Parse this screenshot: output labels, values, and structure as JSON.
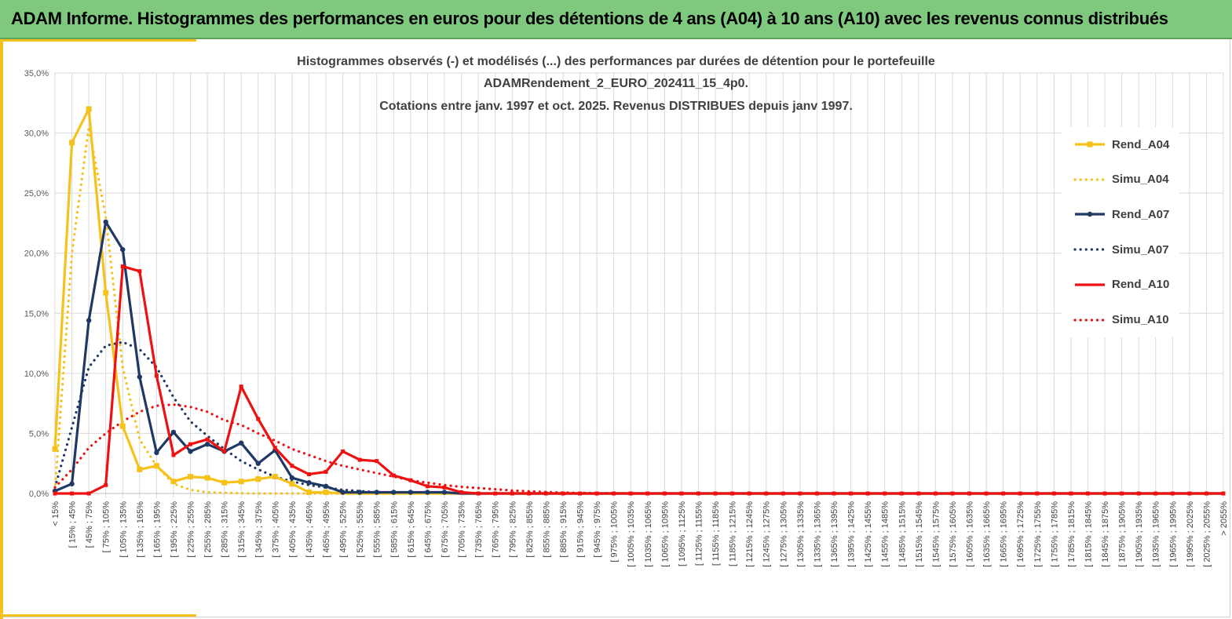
{
  "banner": {
    "title": "ADAM Informe. Histogrammes des performances en euros pour des détentions de 4 ans (A04) à 10 ans (A10) avec les revenus connus distribués"
  },
  "colors": {
    "banner": "#7fc97f",
    "accent": "#f5c21b",
    "A04": "#f5c21b",
    "A07": "#1f3864",
    "A10": "#ee1111",
    "grid": "#d9d9d9"
  },
  "chart_data": {
    "type": "line",
    "title_lines": [
      "Histogrammes observés (-) et modélisés (...) des performances par durées de détention pour le portefeuille",
      "ADAMRendement_2_EURO_202411_15_4p0.",
      "Cotations entre janv. 1997 et oct. 2025. Revenus DISTRIBUES depuis janv 1997."
    ],
    "xlabel": "",
    "ylabel": "",
    "ylim": [
      0,
      35
    ],
    "y_ticks": [
      "0,0%",
      "5,0%",
      "10,0%",
      "15,0%",
      "20,0%",
      "25,0%",
      "30,0%",
      "35,0%"
    ],
    "grid": true,
    "legend_position": "right",
    "categories": [
      "< 15%",
      "[ 15% ; 45%",
      "[ 45% ; 75%",
      "[ 75% ; 105%",
      "[ 105% ; 135%",
      "[ 135% ; 165%",
      "[ 165% ; 195%",
      "[ 195% ; 225%",
      "[ 225% ; 255%",
      "[ 255% ; 285%",
      "[ 285% ; 315%",
      "[ 315% ; 345%",
      "[ 345% ; 375%",
      "[ 375% ; 405%",
      "[ 405% ; 435%",
      "[ 435% ; 465%",
      "[ 465% ; 495%",
      "[ 495% ; 525%",
      "[ 525% ; 555%",
      "[ 555% ; 585%",
      "[ 585% ; 615%",
      "[ 615% ; 645%",
      "[ 645% ; 675%",
      "[ 675% ; 705%",
      "[ 705% ; 735%",
      "[ 735% ; 765%",
      "[ 765% ; 795%",
      "[ 795% ; 825%",
      "[ 825% ; 855%",
      "[ 855% ; 885%",
      "[ 885% ; 915%",
      "[ 915% ; 945%",
      "[ 945% ; 975%",
      "[ 975% ; 1005%",
      "[ 1005% ; 1035%",
      "[ 1035% ; 1065%",
      "[ 1065% ; 1095%",
      "[ 1095% ; 1125%",
      "[ 1125% ; 1155%",
      "[ 1155% ; 1185%",
      "[ 1185% ; 1215%",
      "[ 1215% ; 1245%",
      "[ 1245% ; 1275%",
      "[ 1275% ; 1305%",
      "[ 1305% ; 1335%",
      "[ 1335% ; 1365%",
      "[ 1365% ; 1395%",
      "[ 1395% ; 1425%",
      "[ 1425% ; 1455%",
      "[ 1455% ; 1485%",
      "[ 1485% ; 1515%",
      "[ 1515% ; 1545%",
      "[ 1545% ; 1575%",
      "[ 1575% ; 1605%",
      "[ 1605% ; 1635%",
      "[ 1635% ; 1665%",
      "[ 1665% ; 1695%",
      "[ 1695% ; 1725%",
      "[ 1725% ; 1755%",
      "[ 1755% ; 1785%",
      "[ 1785% ; 1815%",
      "[ 1815% ; 1845%",
      "[ 1845% ; 1875%",
      "[ 1875% ; 1905%",
      "[ 1905% ; 1935%",
      "[ 1935% ; 1965%",
      "[ 1965% ; 1995%",
      "[ 1995% ; 2025%",
      "[ 2025% ; 2055%",
      "> 2055%"
    ],
    "series": [
      {
        "name": "Rend_A04",
        "style": "solid",
        "marker": "square",
        "color": "#f5c21b",
        "values": [
          3.7,
          29.2,
          32.0,
          16.7,
          5.6,
          2.0,
          2.3,
          1.0,
          1.4,
          1.3,
          0.9,
          1.0,
          1.2,
          1.4,
          0.8,
          0.1,
          0.1,
          0,
          0,
          0,
          0,
          0,
          0,
          0,
          0,
          0,
          0,
          0,
          0,
          0,
          0,
          0,
          0,
          0,
          0,
          0,
          0,
          0,
          0,
          0,
          0,
          0,
          0,
          0,
          0,
          0,
          0,
          0,
          0,
          0,
          0,
          0,
          0,
          0,
          0,
          0,
          0,
          0,
          0,
          0,
          0,
          0,
          0,
          0,
          0,
          0,
          0,
          0,
          0,
          0
        ]
      },
      {
        "name": "Simu_A04",
        "style": "dotted",
        "marker": "none",
        "color": "#f5c21b",
        "values": [
          0.3,
          20.0,
          30.5,
          23.0,
          10.5,
          4.5,
          2.3,
          0.8,
          0.3,
          0.1,
          0.05,
          0.02,
          0,
          0,
          0,
          0,
          0,
          0,
          0,
          0,
          0,
          0,
          0,
          0,
          0,
          0,
          0,
          0,
          0,
          0,
          0,
          0,
          0,
          0,
          0,
          0,
          0,
          0,
          0,
          0,
          0,
          0,
          0,
          0,
          0,
          0,
          0,
          0,
          0,
          0,
          0,
          0,
          0,
          0,
          0,
          0,
          0,
          0,
          0,
          0,
          0,
          0,
          0,
          0,
          0,
          0,
          0,
          0,
          0,
          0
        ]
      },
      {
        "name": "Rend_A07",
        "style": "solid",
        "marker": "circle",
        "color": "#1f3864",
        "values": [
          0.2,
          0.8,
          14.4,
          22.6,
          20.3,
          9.7,
          3.4,
          5.1,
          3.5,
          4.1,
          3.5,
          4.2,
          2.5,
          3.6,
          1.3,
          0.9,
          0.6,
          0.1,
          0.1,
          0.1,
          0.1,
          0.1,
          0.1,
          0.1,
          0,
          0,
          0,
          0,
          0,
          0,
          0,
          0,
          0,
          0,
          0,
          0,
          0,
          0,
          0,
          0,
          0,
          0,
          0,
          0,
          0,
          0,
          0,
          0,
          0,
          0,
          0,
          0,
          0,
          0,
          0,
          0,
          0,
          0,
          0,
          0,
          0,
          0,
          0,
          0,
          0,
          0,
          0,
          0,
          0,
          0
        ]
      },
      {
        "name": "Simu_A07",
        "style": "dotted",
        "marker": "none",
        "color": "#1f3864",
        "values": [
          0.5,
          5.5,
          10.5,
          12.3,
          12.6,
          12.0,
          10.5,
          8.0,
          6.0,
          4.8,
          3.7,
          2.7,
          2.0,
          1.4,
          1.0,
          0.7,
          0.5,
          0.3,
          0.2,
          0.1,
          0.05,
          0.02,
          0,
          0,
          0,
          0,
          0,
          0,
          0,
          0,
          0,
          0,
          0,
          0,
          0,
          0,
          0,
          0,
          0,
          0,
          0,
          0,
          0,
          0,
          0,
          0,
          0,
          0,
          0,
          0,
          0,
          0,
          0,
          0,
          0,
          0,
          0,
          0,
          0,
          0,
          0,
          0,
          0,
          0,
          0,
          0,
          0,
          0,
          0,
          0
        ]
      },
      {
        "name": "Rend_A10",
        "style": "solid",
        "marker": "diamond",
        "color": "#ee1111",
        "values": [
          0,
          0,
          0,
          0.7,
          18.9,
          18.5,
          9.8,
          3.2,
          4.1,
          4.5,
          3.5,
          8.9,
          6.2,
          3.8,
          2.3,
          1.6,
          1.8,
          3.5,
          2.8,
          2.7,
          1.5,
          1.1,
          0.6,
          0.5,
          0.1,
          0,
          0,
          0,
          0,
          0,
          0,
          0,
          0,
          0,
          0,
          0,
          0,
          0,
          0,
          0,
          0,
          0,
          0,
          0,
          0,
          0,
          0,
          0,
          0,
          0,
          0,
          0,
          0,
          0,
          0,
          0,
          0,
          0,
          0,
          0,
          0,
          0,
          0,
          0,
          0,
          0,
          0,
          0,
          0,
          0
        ]
      },
      {
        "name": "Simu_A10",
        "style": "dotted",
        "marker": "none",
        "color": "#ee1111",
        "values": [
          0.5,
          2.0,
          3.8,
          5.0,
          6.0,
          6.8,
          7.3,
          7.4,
          7.2,
          6.8,
          6.1,
          5.7,
          5.0,
          4.4,
          3.7,
          3.2,
          2.7,
          2.3,
          2.0,
          1.7,
          1.4,
          1.1,
          0.9,
          0.7,
          0.55,
          0.45,
          0.35,
          0.25,
          0.18,
          0.12,
          0.08,
          0.05,
          0.03,
          0.02,
          0.01,
          0,
          0,
          0,
          0,
          0,
          0,
          0,
          0,
          0,
          0,
          0,
          0,
          0,
          0,
          0,
          0,
          0,
          0,
          0,
          0,
          0,
          0,
          0,
          0,
          0,
          0,
          0,
          0,
          0,
          0,
          0,
          0,
          0,
          0,
          0
        ]
      }
    ]
  }
}
